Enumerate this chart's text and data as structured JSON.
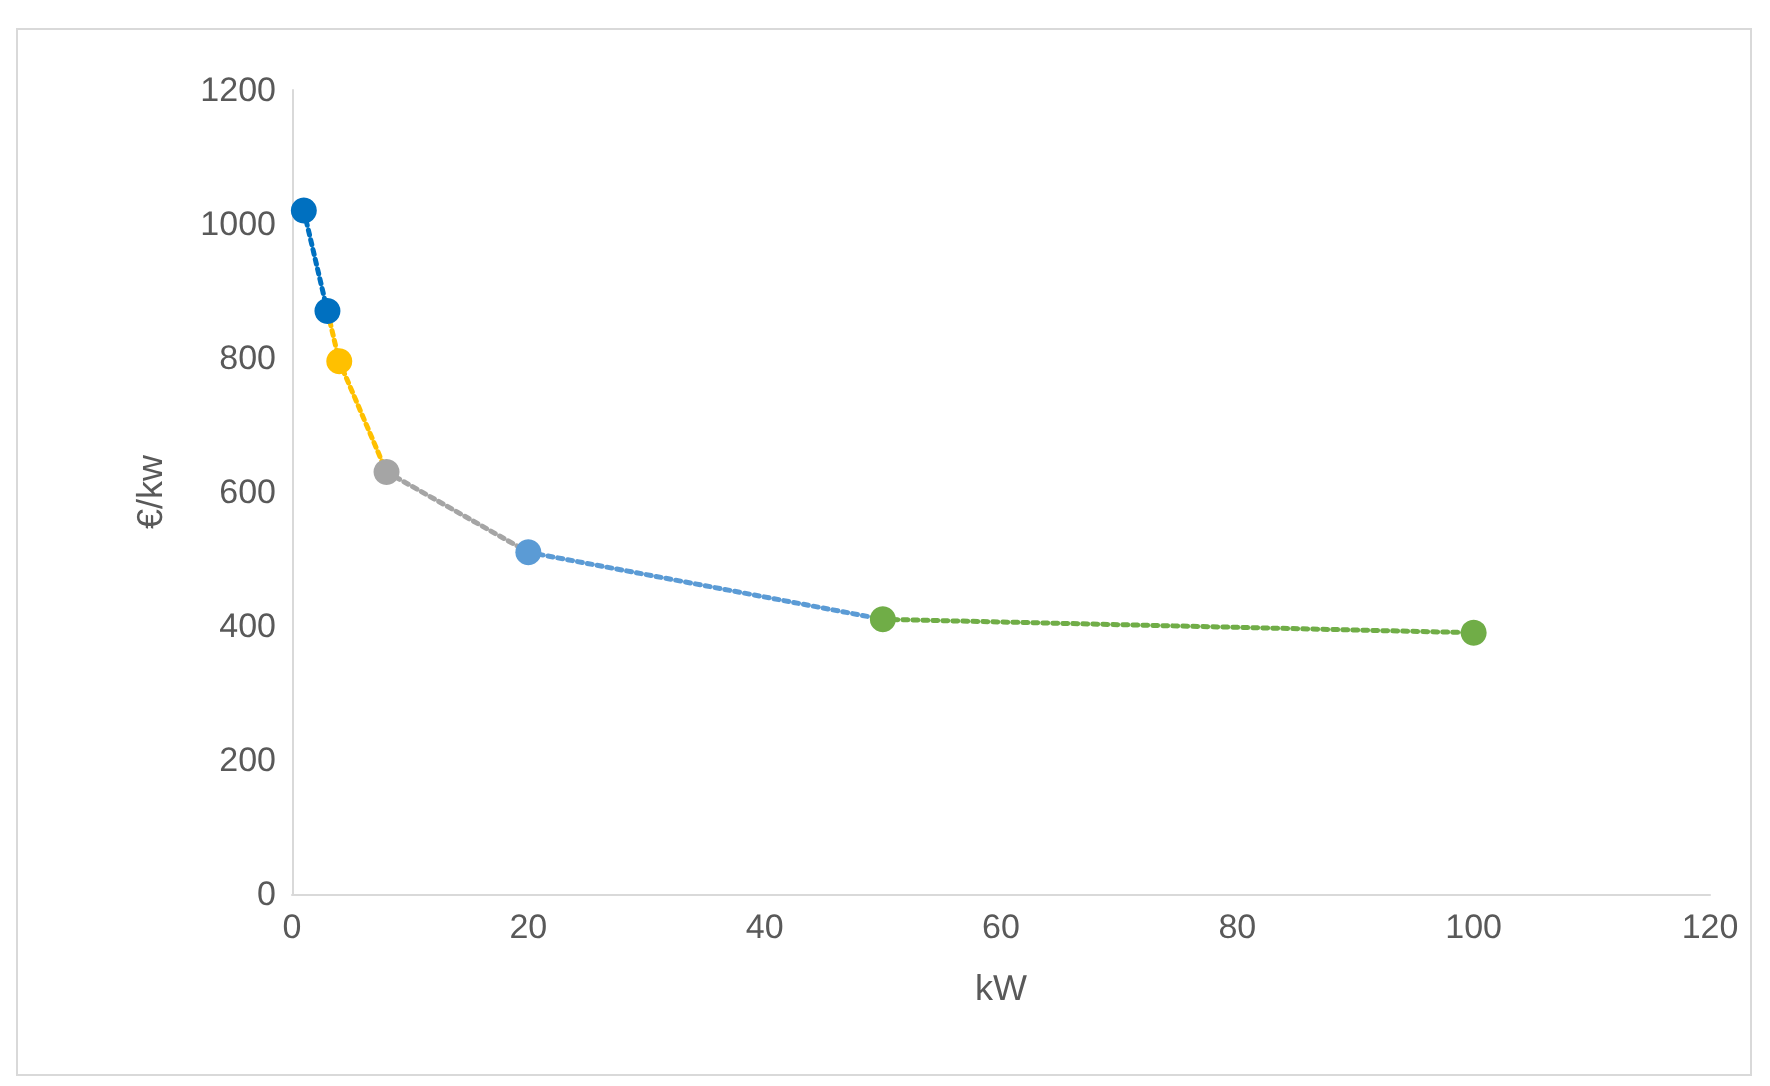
{
  "chart_data": {
    "type": "line",
    "xlabel": "kW",
    "ylabel": "€/kw",
    "xlim": [
      0,
      120
    ],
    "xticks": [
      0,
      20,
      40,
      60,
      80,
      100,
      120
    ],
    "ylim": [
      0,
      1200
    ],
    "yticks": [
      0,
      200,
      400,
      600,
      800,
      1000,
      1200
    ],
    "grid": false,
    "line_style": "dotted",
    "marker": "none",
    "series": [
      {
        "color": "#0070c0",
        "x": [
          1,
          3
        ],
        "values": [
          1020,
          870
        ]
      },
      {
        "color": "#ffc000",
        "x": [
          3,
          4,
          8
        ],
        "values": [
          870,
          795,
          630
        ]
      },
      {
        "color": "#a5a5a5",
        "x": [
          8,
          20
        ],
        "values": [
          630,
          510
        ]
      },
      {
        "color": "#5b9bd5",
        "x": [
          20,
          50
        ],
        "values": [
          510,
          410
        ]
      },
      {
        "color": "#70ad47",
        "x": [
          50,
          100
        ],
        "values": [
          410,
          390
        ]
      },
      {
        "type": "scatter",
        "marker": "circle",
        "x": [
          1,
          3,
          4,
          8,
          20,
          50,
          100
        ],
        "values": [
          1020,
          870,
          795,
          630,
          510,
          410,
          390
        ],
        "colors": [
          "#0070c0",
          "#0070c0",
          "#ffc000",
          "#a5a5a5",
          "#5b9bd5",
          "#70ad47",
          "#70ad47"
        ]
      }
    ]
  }
}
